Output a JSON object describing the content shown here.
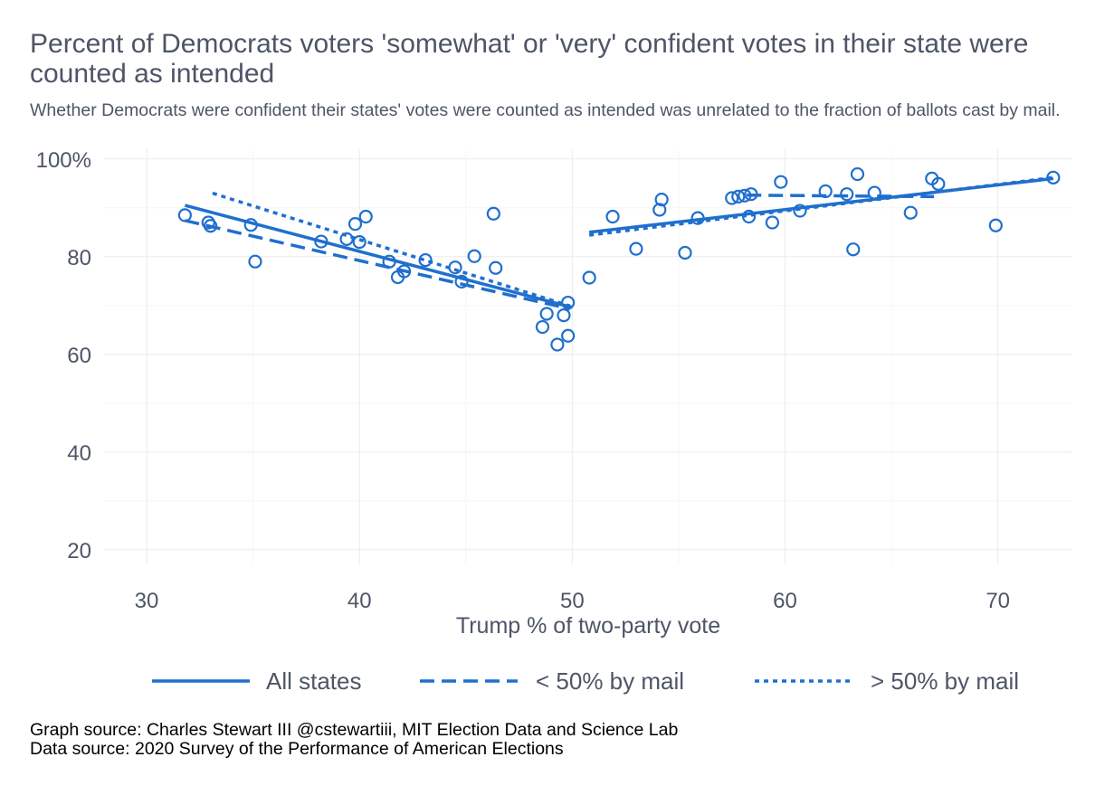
{
  "title": "Percent of Democrats voters 'somewhat' or 'very' confident votes in their state were counted as intended",
  "subtitle": "Whether Democrats were confident their states' votes were counted as intended was unrelated to the fraction of ballots cast by mail.",
  "caption_lines": [
    "Graph source: Charles Stewart III @cstewartiii, MIT Election Data and Science Lab",
    "Data source:  2020 Survey of the Performance of American Elections"
  ],
  "colors": {
    "accent": "#1f6fce",
    "grid": "#ebebeb",
    "text": "#4d5567"
  },
  "chart_data": {
    "type": "scatter",
    "xlabel": "Trump % of two-party vote",
    "ylabel": "",
    "xlim": [
      28,
      73.5
    ],
    "ylim": [
      17,
      102
    ],
    "x_ticks": [
      {
        "value": 30,
        "label": "30"
      },
      {
        "value": 40,
        "label": "40"
      },
      {
        "value": 50,
        "label": "50"
      },
      {
        "value": 60,
        "label": "60"
      },
      {
        "value": 70,
        "label": "70"
      }
    ],
    "y_ticks": [
      {
        "value": 20,
        "label": "20"
      },
      {
        "value": 40,
        "label": "40"
      },
      {
        "value": 60,
        "label": "60"
      },
      {
        "value": 80,
        "label": "80"
      },
      {
        "value": 100,
        "label": "100%"
      }
    ],
    "grid": true,
    "legend_position": "bottom",
    "points": [
      [
        31.8,
        88.5
      ],
      [
        32.9,
        87.0
      ],
      [
        33.0,
        86.3
      ],
      [
        34.9,
        86.5
      ],
      [
        35.1,
        79.0
      ],
      [
        38.2,
        83.1
      ],
      [
        39.4,
        83.6
      ],
      [
        39.8,
        86.7
      ],
      [
        40.0,
        83.0
      ],
      [
        40.3,
        88.2
      ],
      [
        41.4,
        79.0
      ],
      [
        41.8,
        75.8
      ],
      [
        42.1,
        77.0
      ],
      [
        43.1,
        79.3
      ],
      [
        44.5,
        77.8
      ],
      [
        44.8,
        74.9
      ],
      [
        45.4,
        80.1
      ],
      [
        46.3,
        88.8
      ],
      [
        46.4,
        77.7
      ],
      [
        48.6,
        65.6
      ],
      [
        48.8,
        68.3
      ],
      [
        49.3,
        62.0
      ],
      [
        49.6,
        68.0
      ],
      [
        49.8,
        70.6
      ],
      [
        49.8,
        63.8
      ],
      [
        50.8,
        75.7
      ],
      [
        51.9,
        88.2
      ],
      [
        53.0,
        81.6
      ],
      [
        54.1,
        89.6
      ],
      [
        54.2,
        91.7
      ],
      [
        55.3,
        80.8
      ],
      [
        55.9,
        87.9
      ],
      [
        57.5,
        92.0
      ],
      [
        57.8,
        92.3
      ],
      [
        58.1,
        92.5
      ],
      [
        58.3,
        88.2
      ],
      [
        58.4,
        92.8
      ],
      [
        59.4,
        87.0
      ],
      [
        59.8,
        95.3
      ],
      [
        60.7,
        89.4
      ],
      [
        61.9,
        93.4
      ],
      [
        62.9,
        92.8
      ],
      [
        63.2,
        81.5
      ],
      [
        63.4,
        96.9
      ],
      [
        64.2,
        93.1
      ],
      [
        65.9,
        89.0
      ],
      [
        66.9,
        96.0
      ],
      [
        67.2,
        94.9
      ],
      [
        69.9,
        86.4
      ],
      [
        72.6,
        96.2
      ]
    ],
    "series": [
      {
        "name": "All states",
        "style": "solid",
        "segments": [
          [
            [
              31.8,
              90.5
            ],
            [
              50.0,
              69.6
            ]
          ],
          [
            [
              50.8,
              85.0
            ],
            [
              72.6,
              96.0
            ]
          ]
        ]
      },
      {
        "name": "< 50% by mail",
        "style": "dashed",
        "segments": [
          [
            [
              31.8,
              87.4
            ],
            [
              49.9,
              69.3
            ]
          ],
          [
            [
              58.2,
              92.6
            ],
            [
              67.0,
              92.3
            ]
          ]
        ]
      },
      {
        "name": "> 50% by mail",
        "style": "dotted",
        "segments": [
          [
            [
              33.1,
              93.0
            ],
            [
              49.9,
              69.9
            ]
          ],
          [
            [
              50.8,
              84.4
            ],
            [
              72.6,
              96.2
            ]
          ]
        ]
      }
    ]
  }
}
